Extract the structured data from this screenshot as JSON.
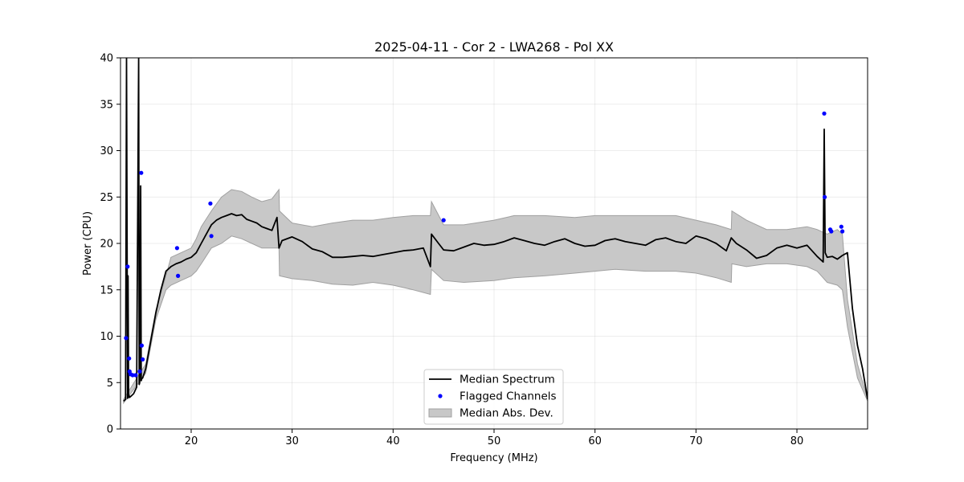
{
  "chart_data": {
    "type": "line",
    "title": "2025-04-11 - Cor 2 - LWA268 - Pol XX",
    "xlabel": "Frequency (MHz)",
    "ylabel": "Power (CPU)",
    "xlim": [
      13,
      87
    ],
    "ylim": [
      0,
      40
    ],
    "xticks": [
      20,
      30,
      40,
      50,
      60,
      70,
      80
    ],
    "yticks": [
      0,
      5,
      10,
      15,
      20,
      25,
      30,
      35,
      40
    ],
    "grid": true,
    "legend": {
      "position": "bottom-center",
      "entries": [
        "Median Spectrum",
        "Flagged Channels",
        "Median Abs. Dev."
      ]
    },
    "series": [
      {
        "name": "Median Spectrum",
        "color": "#000000",
        "x": [
          13.3,
          13.5,
          13.6,
          13.7,
          13.75,
          13.8,
          13.85,
          13.9,
          14.0,
          14.3,
          14.6,
          14.8,
          14.85,
          14.9,
          15.0,
          15.05,
          15.1,
          15.2,
          15.5,
          16.0,
          16.5,
          17.0,
          17.5,
          18.0,
          18.5,
          19.0,
          19.5,
          20.0,
          20.5,
          21.0,
          21.5,
          22.0,
          22.5,
          23.0,
          23.5,
          24.0,
          24.5,
          25.0,
          25.5,
          26.0,
          26.5,
          27.0,
          27.5,
          28.0,
          28.5,
          28.7,
          29.0,
          30.0,
          31.0,
          32.0,
          33.0,
          34.0,
          35.0,
          36.0,
          37.0,
          38.0,
          39.0,
          40.0,
          41.0,
          42.0,
          43.0,
          43.7,
          43.8,
          44.5,
          45.0,
          46.0,
          47.0,
          48.0,
          49.0,
          50.0,
          51.0,
          52.0,
          53.0,
          54.0,
          55.0,
          56.0,
          57.0,
          58.0,
          59.0,
          60.0,
          61.0,
          62.0,
          63.0,
          64.0,
          65.0,
          66.0,
          67.0,
          68.0,
          69.0,
          70.0,
          71.0,
          72.0,
          73.0,
          73.5,
          74.0,
          75.0,
          76.0,
          77.0,
          78.0,
          79.0,
          80.0,
          81.0,
          82.0,
          82.6,
          82.7,
          82.8,
          83.0,
          83.5,
          84.0,
          84.5,
          85.0,
          85.5,
          86.0,
          86.5,
          87.0
        ],
        "y": [
          3.0,
          3.2,
          40,
          3.3,
          16.5,
          3.4,
          3.6,
          3.4,
          3.5,
          3.8,
          4.5,
          40,
          4.8,
          5.0,
          26.2,
          5.2,
          5.4,
          5.5,
          6.5,
          9.5,
          12.5,
          15.0,
          17.0,
          17.5,
          17.8,
          18.0,
          18.3,
          18.5,
          19.0,
          20.0,
          21.0,
          22.0,
          22.5,
          22.8,
          23.0,
          23.2,
          23.0,
          23.1,
          22.6,
          22.4,
          22.2,
          21.8,
          21.6,
          21.4,
          22.8,
          19.5,
          20.3,
          20.7,
          20.2,
          19.4,
          19.1,
          18.5,
          18.5,
          18.6,
          18.7,
          18.6,
          18.8,
          19.0,
          19.2,
          19.3,
          19.5,
          17.5,
          21.0,
          20.0,
          19.3,
          19.2,
          19.6,
          20.0,
          19.8,
          19.9,
          20.2,
          20.6,
          20.3,
          20.0,
          19.8,
          20.2,
          20.5,
          20.0,
          19.7,
          19.8,
          20.3,
          20.5,
          20.2,
          20.0,
          19.8,
          20.4,
          20.6,
          20.2,
          20.0,
          20.8,
          20.5,
          20.0,
          19.2,
          20.6,
          20.0,
          19.3,
          18.4,
          18.7,
          19.5,
          19.8,
          19.5,
          19.8,
          18.6,
          18.0,
          32.3,
          19.0,
          18.5,
          18.6,
          18.3,
          18.7,
          19.0,
          13.0,
          9.0,
          6.5,
          3.2
        ]
      },
      {
        "name": "Flagged Channels",
        "color": "#0000ff",
        "x": [
          13.55,
          13.7,
          13.85,
          13.9,
          14.0,
          14.2,
          14.5,
          14.9,
          15.05,
          15.1,
          15.2,
          18.6,
          18.7,
          21.9,
          22.0,
          45.0,
          82.7,
          82.75,
          83.3,
          83.4,
          84.4,
          84.5
        ],
        "y": [
          9.8,
          17.5,
          7.6,
          6.2,
          5.9,
          5.8,
          5.8,
          6.2,
          27.6,
          9.0,
          7.5,
          19.5,
          16.5,
          24.3,
          20.8,
          22.5,
          34.0,
          25.0,
          21.5,
          21.3,
          21.8,
          21.3
        ]
      },
      {
        "name": "Median Abs. Dev.",
        "color": "#c8c8c8",
        "x": [
          13.3,
          15.5,
          16.5,
          17.5,
          18.0,
          19.0,
          20.0,
          20.5,
          21.0,
          22.0,
          23.0,
          24.0,
          25.0,
          26.0,
          27.0,
          28.0,
          28.7,
          28.75,
          30.0,
          32.0,
          34.0,
          36.0,
          38.0,
          40.0,
          42.0,
          43.7,
          43.8,
          45.0,
          47.0,
          50.0,
          52.0,
          55.0,
          58.0,
          60.0,
          62.0,
          65.0,
          68.0,
          70.0,
          72.0,
          73.5,
          73.55,
          75.0,
          77.0,
          79.0,
          81.0,
          82.0,
          83.0,
          84.0,
          84.5,
          85.0,
          86.0,
          87.0
        ],
        "upper": [
          3.2,
          7.0,
          12.8,
          16.5,
          18.5,
          19.0,
          19.5,
          20.5,
          21.8,
          23.5,
          25.0,
          25.8,
          25.6,
          25.0,
          24.5,
          24.8,
          25.8,
          23.5,
          22.2,
          21.8,
          22.2,
          22.5,
          22.5,
          22.8,
          23.0,
          23.0,
          24.5,
          22.0,
          22.0,
          22.5,
          23.0,
          23.0,
          22.8,
          23.0,
          23.0,
          23.0,
          23.0,
          22.5,
          22.0,
          21.5,
          23.5,
          22.5,
          21.5,
          21.5,
          21.8,
          21.5,
          21.0,
          21.5,
          21.0,
          14.0,
          7.0,
          3.2
        ],
        "lower": [
          2.8,
          6.0,
          11.8,
          15.0,
          15.5,
          16.0,
          16.5,
          17.0,
          17.8,
          19.5,
          20.0,
          20.8,
          20.5,
          20.0,
          19.5,
          19.5,
          19.5,
          16.5,
          16.2,
          16.0,
          15.6,
          15.5,
          15.8,
          15.5,
          15.0,
          14.5,
          17.2,
          16.0,
          15.8,
          16.0,
          16.3,
          16.5,
          16.8,
          17.0,
          17.2,
          17.0,
          17.0,
          16.8,
          16.3,
          15.8,
          17.8,
          17.5,
          17.8,
          17.8,
          17.5,
          17.0,
          15.8,
          15.5,
          15.0,
          11.0,
          5.5,
          3.0
        ]
      }
    ]
  }
}
